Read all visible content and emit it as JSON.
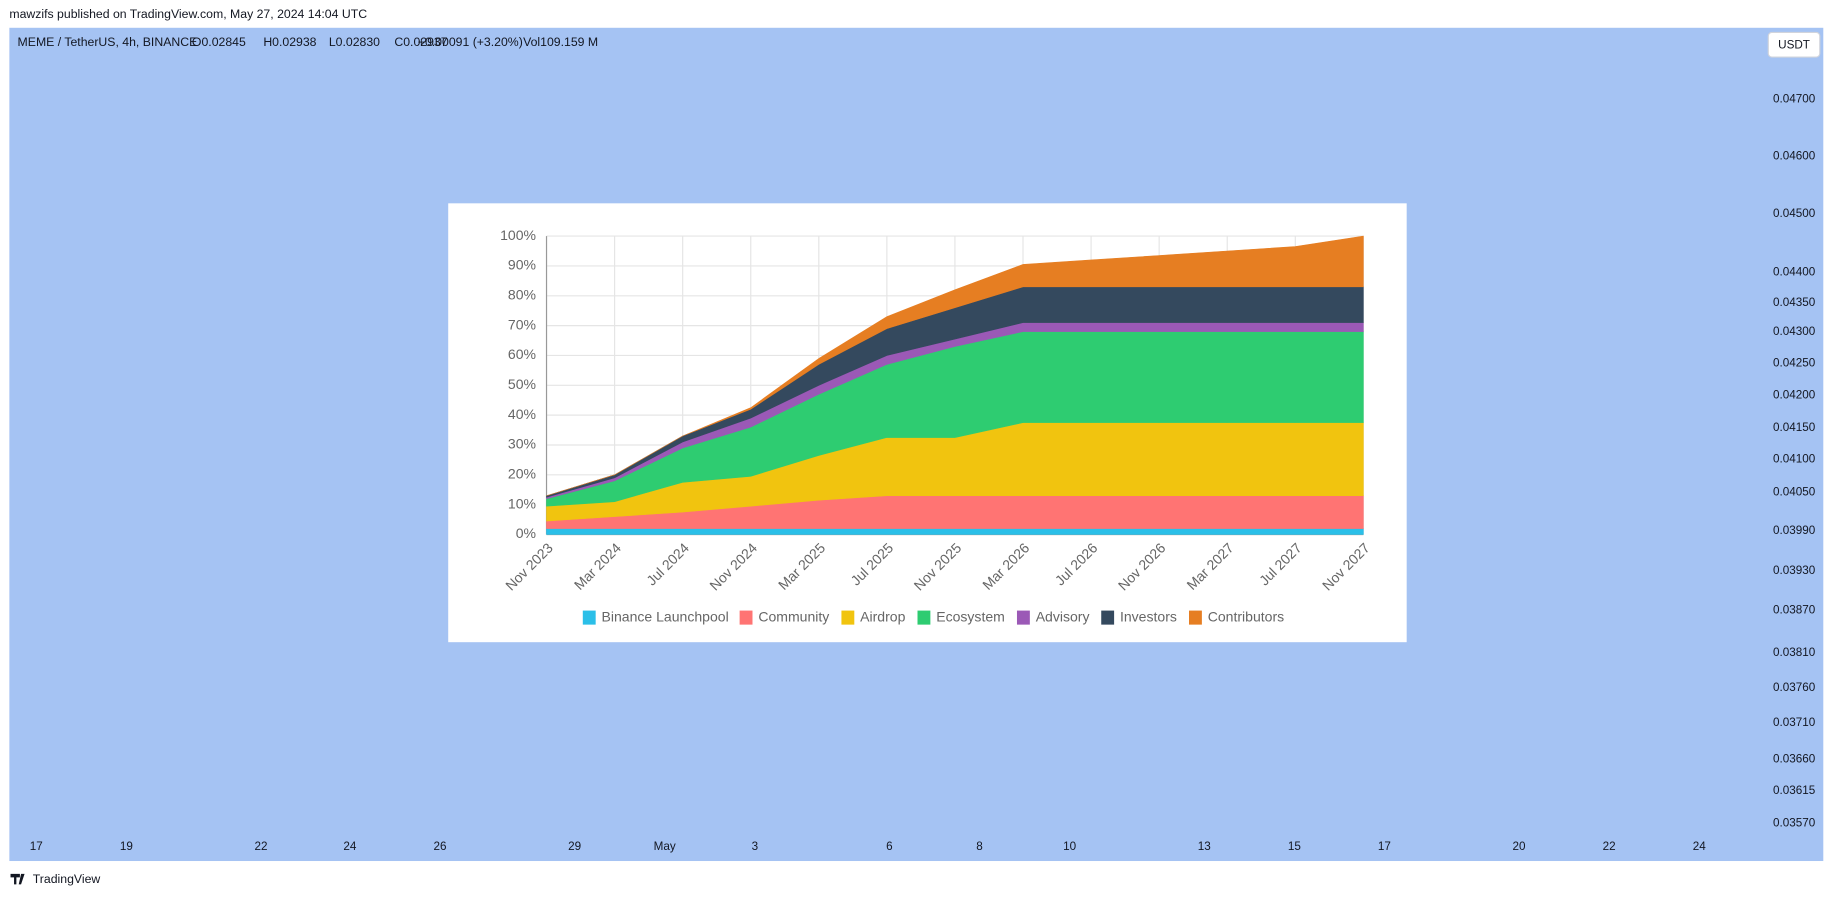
{
  "header": {
    "byline": "mawzifs published on TradingView.com, May 27, 2024 14:04 UTC"
  },
  "symbol_bar": {
    "symbol": "MEME / TetherUS, 4h, BINANCE",
    "open": "O0.02845",
    "high": "H0.02938",
    "low": "L0.02830",
    "close": "C0.02937",
    "change": "+0.00091 (+3.20%)",
    "volume": "Vol109.159 M"
  },
  "currency_button": "USDT",
  "price_axis": [
    "0.04700",
    "0.04600",
    "0.04500",
    "0.04400",
    "0.04350",
    "0.04300",
    "0.04250",
    "0.04200",
    "0.04150",
    "0.04100",
    "0.04050",
    "0.03990",
    "0.03930",
    "0.03870",
    "0.03810",
    "0.03760",
    "0.03710",
    "0.03660",
    "0.03615",
    "0.03570"
  ],
  "time_axis": [
    "17",
    "19",
    "22",
    "24",
    "26",
    "29",
    "May",
    "3",
    "6",
    "8",
    "10",
    "13",
    "15",
    "17",
    "20",
    "22",
    "24"
  ],
  "footer": {
    "brand": "TradingView"
  },
  "chart_data": {
    "type": "stacked_area",
    "categories": [
      "Nov 2023",
      "Mar 2024",
      "Jul 2024",
      "Nov 2024",
      "Mar 2025",
      "Jul 2025",
      "Nov 2025",
      "Mar 2026",
      "Jul 2026",
      "Nov 2026",
      "Mar 2027",
      "Jul 2027",
      "Nov 2027"
    ],
    "series": [
      {
        "name": "Binance Launchpool",
        "color": "#2bbfe8",
        "values": [
          2,
          2,
          2,
          2,
          2,
          2,
          2,
          2,
          2,
          2,
          2,
          2,
          2
        ]
      },
      {
        "name": "Community",
        "color": "#ff7473",
        "values": [
          2.5,
          4,
          5.5,
          7.5,
          9.5,
          11,
          11,
          11,
          11,
          11,
          11,
          11,
          11
        ]
      },
      {
        "name": "Airdrop",
        "color": "#f1c40f",
        "values": [
          5,
          5,
          10,
          10,
          15,
          19.5,
          19.5,
          24.5,
          24.5,
          24.5,
          24.5,
          24.5,
          24.5
        ]
      },
      {
        "name": "Ecosystem",
        "color": "#2ecc71",
        "values": [
          2.5,
          7,
          11.5,
          16.5,
          20.5,
          24.5,
          30.5,
          30.5,
          30.5,
          30.5,
          30.5,
          30.5,
          30.5
        ]
      },
      {
        "name": "Advisory",
        "color": "#9b59b6",
        "values": [
          0.5,
          1,
          2,
          3,
          3,
          3,
          2.5,
          3,
          3,
          3,
          3,
          3,
          3
        ]
      },
      {
        "name": "Investors",
        "color": "#34495e",
        "values": [
          0.5,
          1,
          2,
          3,
          7,
          9,
          10.5,
          12,
          12,
          12,
          12,
          12,
          12
        ]
      },
      {
        "name": "Contributors",
        "color": "#e67e22",
        "values": [
          0,
          0,
          0,
          0.5,
          2,
          4,
          6,
          7.5,
          9,
          10.5,
          12,
          13.5,
          17
        ]
      }
    ],
    "ylim": [
      0,
      100
    ],
    "yticks": [
      {
        "value": 0,
        "label": "0%"
      },
      {
        "value": 10,
        "label": "10%"
      },
      {
        "value": 20,
        "label": "20%"
      },
      {
        "value": 30,
        "label": "30%"
      },
      {
        "value": 40,
        "label": "40%"
      },
      {
        "value": 50,
        "label": "50%"
      },
      {
        "value": 60,
        "label": "60%"
      },
      {
        "value": 70,
        "label": "70%"
      },
      {
        "value": 80,
        "label": "80%"
      },
      {
        "value": 90,
        "label": "90%"
      },
      {
        "value": 100,
        "label": "100%"
      }
    ],
    "grid": true,
    "legend": "bottom"
  }
}
